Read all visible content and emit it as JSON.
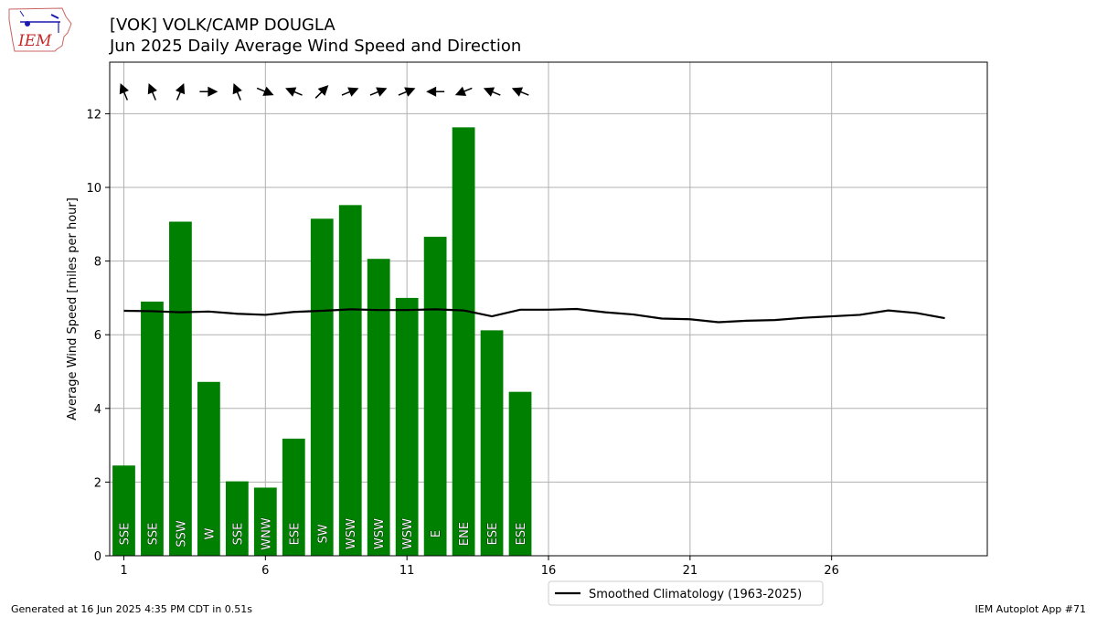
{
  "header": {
    "title_line1": "[VOK] VOLK/CAMP DOUGLA",
    "title_line2": "Jun 2025 Daily Average Wind Speed and Direction"
  },
  "logo": {
    "text": "IEM",
    "icon": "iowa-state-outline-logo"
  },
  "footer": {
    "generated": "Generated at 16 Jun 2025 4:35 PM CDT in 0.51s",
    "app": "IEM Autoplot App #71"
  },
  "colors": {
    "bar": "#008000",
    "climo_line": "#000000",
    "grid": "#b0b0b0",
    "arrow": "#000000"
  },
  "chart_data": {
    "type": "bar",
    "title": "[VOK] VOLK/CAMP DOUGLA",
    "subtitle": "Jun 2025 Daily Average Wind Speed and Direction",
    "xlabel": "",
    "ylabel": "Average Wind Speed [miles per hour]",
    "xlim": [
      0.5,
      31.5
    ],
    "ylim": [
      0,
      13.4
    ],
    "xticks": [
      1,
      6,
      11,
      16,
      21,
      26
    ],
    "yticks": [
      0,
      2,
      4,
      6,
      8,
      10,
      12
    ],
    "grid": true,
    "legend_position": "bottom-center",
    "bars": {
      "days": [
        1,
        2,
        3,
        4,
        5,
        6,
        7,
        8,
        9,
        10,
        11,
        12,
        13,
        14,
        15
      ],
      "values": [
        2.45,
        6.9,
        9.07,
        4.72,
        2.02,
        1.85,
        3.18,
        9.15,
        9.52,
        8.06,
        7.0,
        8.66,
        11.63,
        6.12,
        4.45
      ],
      "direction_labels": [
        "SSE",
        "SSE",
        "SSW",
        "W",
        "SSE",
        "WNW",
        "ESE",
        "SW",
        "WSW",
        "WSW",
        "WSW",
        "E",
        "ENE",
        "ESE",
        "ESE"
      ],
      "direction_degrees": [
        157.5,
        157.5,
        202.5,
        270,
        157.5,
        292.5,
        112.5,
        225,
        247.5,
        247.5,
        247.5,
        90,
        67.5,
        112.5,
        112.5
      ]
    },
    "series": [
      {
        "name": "Smoothed Climatology (1963-2025)",
        "x": [
          1,
          2,
          3,
          4,
          5,
          6,
          7,
          8,
          9,
          10,
          11,
          12,
          13,
          14,
          15,
          16,
          17,
          18,
          19,
          20,
          21,
          22,
          23,
          24,
          25,
          26,
          27,
          28,
          29,
          30
        ],
        "values": [
          6.65,
          6.64,
          6.61,
          6.63,
          6.57,
          6.54,
          6.62,
          6.65,
          6.69,
          6.67,
          6.67,
          6.69,
          6.66,
          6.5,
          6.68,
          6.68,
          6.7,
          6.61,
          6.55,
          6.44,
          6.42,
          6.34,
          6.38,
          6.4,
          6.46,
          6.5,
          6.54,
          6.66,
          6.59,
          6.45
        ]
      }
    ]
  }
}
